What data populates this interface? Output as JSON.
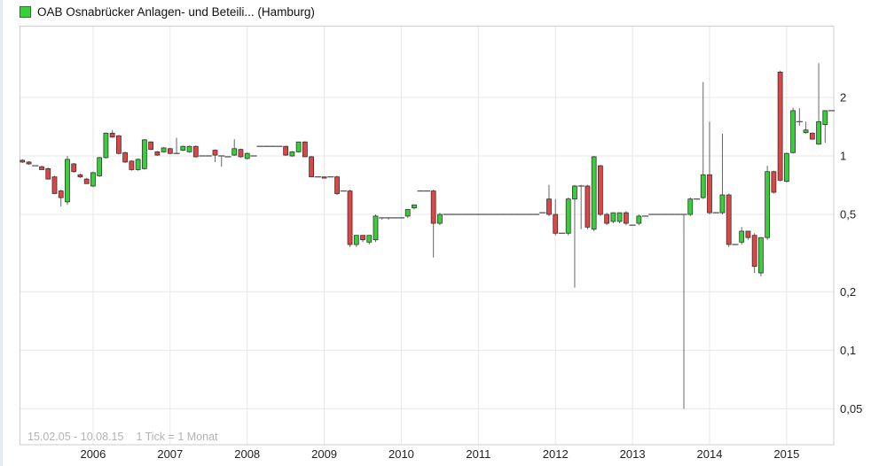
{
  "legend": {
    "title": "OAB Osnabrücker Anlagen- und Beteili... (Hamburg)",
    "marker_color": "#38d038"
  },
  "footer": {
    "range": "15.02.05 - 10.08.15",
    "tick": "1 Tick = 1 Monat"
  },
  "chart_data": {
    "type": "candlestick",
    "title": "OAB Osnabrücker Anlagen- und Beteili... (Hamburg)",
    "scale_y": "log",
    "grid": true,
    "start_month": "2005-02",
    "months_per_tick": 1,
    "ylim": [
      0.033,
      4.6
    ],
    "y_ticks": [
      {
        "label": "2",
        "value": 2
      },
      {
        "label": "1",
        "value": 1
      },
      {
        "label": "0,5",
        "value": 0.5
      },
      {
        "label": "0,2",
        "value": 0.2
      },
      {
        "label": "0,1",
        "value": 0.1
      },
      {
        "label": "0,05",
        "value": 0.05
      }
    ],
    "x_ticks": [
      {
        "label": "2006",
        "month_index": 11
      },
      {
        "label": "2007",
        "month_index": 23
      },
      {
        "label": "2008",
        "month_index": 35
      },
      {
        "label": "2009",
        "month_index": 47
      },
      {
        "label": "2010",
        "month_index": 59
      },
      {
        "label": "2011",
        "month_index": 71
      },
      {
        "label": "2012",
        "month_index": 83
      },
      {
        "label": "2013",
        "month_index": 95
      },
      {
        "label": "2014",
        "month_index": 107
      },
      {
        "label": "2015",
        "month_index": 119
      }
    ],
    "colors": {
      "up": "#38d038",
      "down": "#e04545",
      "body_border": "#333333",
      "wick": "#666666",
      "doji": "#555555",
      "grid": "#e7e7e7",
      "frame": "#cccccc",
      "axis_text": "#222222",
      "muted_text": "#b3b3b3"
    },
    "ohlc": [
      [
        0.95,
        0.96,
        0.92,
        0.93
      ],
      [
        0.93,
        0.94,
        0.9,
        0.91
      ],
      [
        0.89,
        0.89,
        0.89,
        0.89
      ],
      [
        0.88,
        0.89,
        0.85,
        0.85
      ],
      [
        0.86,
        0.87,
        0.76,
        0.76
      ],
      [
        0.78,
        0.79,
        0.64,
        0.64
      ],
      [
        0.66,
        0.67,
        0.55,
        0.61
      ],
      [
        0.58,
        1.0,
        0.56,
        0.96
      ],
      [
        0.91,
        0.92,
        0.82,
        0.83
      ],
      [
        0.8,
        0.81,
        0.77,
        0.78
      ],
      [
        0.76,
        0.77,
        0.72,
        0.72
      ],
      [
        0.7,
        0.83,
        0.69,
        0.82
      ],
      [
        0.79,
        0.99,
        0.78,
        0.98
      ],
      [
        0.98,
        1.32,
        0.97,
        1.31
      ],
      [
        1.31,
        1.36,
        1.24,
        1.25
      ],
      [
        1.27,
        1.28,
        1.02,
        1.03
      ],
      [
        1.04,
        1.05,
        0.92,
        0.93
      ],
      [
        0.94,
        0.95,
        0.84,
        0.85
      ],
      [
        0.85,
        0.97,
        0.84,
        0.96
      ],
      [
        0.86,
        1.22,
        0.85,
        1.21
      ],
      [
        1.18,
        1.19,
        1.07,
        1.08
      ],
      [
        1.05,
        1.06,
        1.0,
        1.01
      ],
      [
        1.05,
        1.11,
        1.04,
        1.1
      ],
      [
        1.09,
        1.1,
        1.02,
        1.03
      ],
      [
        1.03,
        1.24,
        1.02,
        1.03
      ],
      [
        1.07,
        1.13,
        1.06,
        1.12
      ],
      [
        1.05,
        1.13,
        1.04,
        1.12
      ],
      [
        1.12,
        1.13,
        0.98,
        0.99
      ],
      [
        1.0,
        1.0,
        1.0,
        1.0
      ],
      [
        1.0,
        1.0,
        1.0,
        1.0
      ],
      [
        1.07,
        1.08,
        0.93,
        1.01
      ],
      [
        1.0,
        1.0,
        0.88,
        1.0
      ],
      [
        0.99,
        0.99,
        0.99,
        0.99
      ],
      [
        1.01,
        1.22,
        1.0,
        1.09
      ],
      [
        1.08,
        1.09,
        0.98,
        0.99
      ],
      [
        0.97,
        1.04,
        0.96,
        1.03
      ],
      [
        1.0,
        1.0,
        1.0,
        1.0
      ],
      [
        1.12,
        1.12,
        1.12,
        1.12
      ],
      [
        1.12,
        1.12,
        1.12,
        1.12
      ],
      [
        1.12,
        1.12,
        1.12,
        1.12
      ],
      [
        1.12,
        1.12,
        1.12,
        1.12
      ],
      [
        1.12,
        1.13,
        1.0,
        1.01
      ],
      [
        1.0,
        1.06,
        0.99,
        1.05
      ],
      [
        1.05,
        1.18,
        1.04,
        1.18
      ],
      [
        1.18,
        1.19,
        0.99,
        0.99
      ],
      [
        0.99,
        1.0,
        0.78,
        0.78
      ],
      [
        0.78,
        0.78,
        0.78,
        0.78
      ],
      [
        0.78,
        0.78,
        0.77,
        0.77
      ],
      [
        0.78,
        0.78,
        0.78,
        0.78
      ],
      [
        0.78,
        0.79,
        0.63,
        0.64
      ],
      [
        0.66,
        0.66,
        0.66,
        0.66
      ],
      [
        0.66,
        0.67,
        0.34,
        0.35
      ],
      [
        0.35,
        0.39,
        0.34,
        0.39
      ],
      [
        0.39,
        0.39,
        0.36,
        0.37
      ],
      [
        0.36,
        0.39,
        0.35,
        0.39
      ],
      [
        0.37,
        0.5,
        0.36,
        0.49
      ],
      [
        0.48,
        0.48,
        0.47,
        0.48
      ],
      [
        0.48,
        0.48,
        0.47,
        0.48
      ],
      [
        0.48,
        0.48,
        0.48,
        0.48
      ],
      [
        0.48,
        0.48,
        0.48,
        0.48
      ],
      [
        0.49,
        0.53,
        0.48,
        0.53
      ],
      [
        0.54,
        0.56,
        0.53,
        0.56
      ],
      [
        0.66,
        0.66,
        0.66,
        0.66
      ],
      [
        0.66,
        0.66,
        0.66,
        0.66
      ],
      [
        0.66,
        0.67,
        0.3,
        0.45
      ],
      [
        0.45,
        0.51,
        0.44,
        0.5
      ],
      [
        0.5,
        0.5,
        0.5,
        0.5
      ],
      [
        0.5,
        0.5,
        0.5,
        0.5
      ],
      [
        0.5,
        0.5,
        0.5,
        0.5
      ],
      [
        0.5,
        0.5,
        0.5,
        0.5
      ],
      [
        0.5,
        0.5,
        0.5,
        0.5
      ],
      [
        0.5,
        0.5,
        0.5,
        0.5
      ],
      [
        0.5,
        0.5,
        0.5,
        0.5
      ],
      [
        0.5,
        0.5,
        0.5,
        0.5
      ],
      [
        0.5,
        0.5,
        0.5,
        0.5
      ],
      [
        0.5,
        0.5,
        0.5,
        0.5
      ],
      [
        0.5,
        0.5,
        0.5,
        0.5
      ],
      [
        0.5,
        0.5,
        0.5,
        0.5
      ],
      [
        0.5,
        0.5,
        0.5,
        0.5
      ],
      [
        0.5,
        0.5,
        0.5,
        0.5
      ],
      [
        0.5,
        0.5,
        0.5,
        0.5
      ],
      [
        0.51,
        0.51,
        0.51,
        0.51
      ],
      [
        0.6,
        0.71,
        0.49,
        0.5
      ],
      [
        0.5,
        0.6,
        0.39,
        0.4
      ],
      [
        0.4,
        0.4,
        0.4,
        0.4
      ],
      [
        0.4,
        0.61,
        0.39,
        0.6
      ],
      [
        0.6,
        0.71,
        0.21,
        0.7
      ],
      [
        0.7,
        0.71,
        0.42,
        0.7
      ],
      [
        0.7,
        0.71,
        0.42,
        0.43
      ],
      [
        0.42,
        1.0,
        0.41,
        0.99
      ],
      [
        0.89,
        0.9,
        0.49,
        0.5
      ],
      [
        0.5,
        0.51,
        0.44,
        0.45
      ],
      [
        0.46,
        0.51,
        0.45,
        0.51
      ],
      [
        0.46,
        0.51,
        0.45,
        0.51
      ],
      [
        0.51,
        0.52,
        0.44,
        0.45
      ],
      [
        0.44,
        0.44,
        0.44,
        0.44
      ],
      [
        0.45,
        0.5,
        0.44,
        0.49
      ],
      [
        0.49,
        0.49,
        0.49,
        0.49
      ],
      [
        0.5,
        0.5,
        0.5,
        0.5
      ],
      [
        0.5,
        0.5,
        0.5,
        0.5
      ],
      [
        0.5,
        0.5,
        0.5,
        0.5
      ],
      [
        0.5,
        0.5,
        0.5,
        0.5
      ],
      [
        0.5,
        0.5,
        0.5,
        0.5
      ],
      [
        0.5,
        0.5,
        0.05,
        0.5
      ],
      [
        0.5,
        0.61,
        0.49,
        0.6
      ],
      [
        0.6,
        0.6,
        0.6,
        0.6
      ],
      [
        0.61,
        2.4,
        0.6,
        0.8
      ],
      [
        0.8,
        1.5,
        0.5,
        0.51
      ],
      [
        0.51,
        0.51,
        0.51,
        0.51
      ],
      [
        0.51,
        1.3,
        0.5,
        0.63
      ],
      [
        0.63,
        0.64,
        0.34,
        0.35
      ],
      [
        0.35,
        0.35,
        0.35,
        0.35
      ],
      [
        0.36,
        0.43,
        0.35,
        0.41
      ],
      [
        0.41,
        0.41,
        0.37,
        0.38
      ],
      [
        0.39,
        0.4,
        0.25,
        0.27
      ],
      [
        0.25,
        0.38,
        0.24,
        0.38
      ],
      [
        0.38,
        0.89,
        0.37,
        0.83
      ],
      [
        0.83,
        0.84,
        0.64,
        0.65
      ],
      [
        2.7,
        2.75,
        0.74,
        0.75
      ],
      [
        0.74,
        1.04,
        0.73,
        1.03
      ],
      [
        1.04,
        1.77,
        1.03,
        1.71
      ],
      [
        1.5,
        1.76,
        1.43,
        1.5
      ],
      [
        1.32,
        1.5,
        1.3,
        1.36
      ],
      [
        1.31,
        1.32,
        1.21,
        1.22
      ],
      [
        1.15,
        3.0,
        1.14,
        1.5
      ],
      [
        1.45,
        1.72,
        1.17,
        1.71
      ],
      [
        1.71,
        1.71,
        1.71,
        1.71
      ]
    ]
  }
}
